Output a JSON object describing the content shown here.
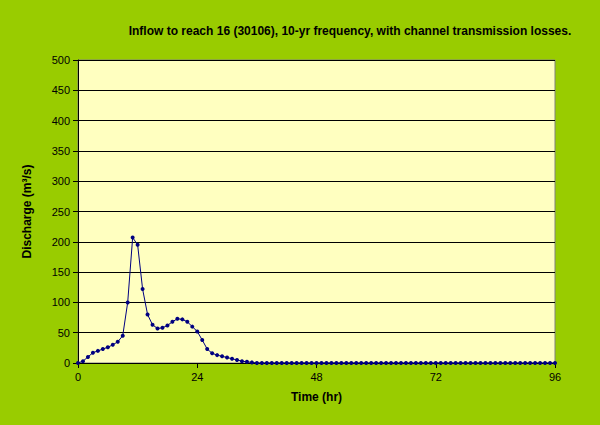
{
  "chart_data": {
    "type": "line",
    "title": "Inflow to reach 16 (30106), 10-yr frequency, with channel transmission losses.",
    "x_label": "Time (hr)",
    "y_label": "Discharge (m³/s)",
    "x": [
      0,
      1,
      2,
      3,
      4,
      5,
      6,
      7,
      8,
      9,
      10,
      11,
      12,
      13,
      14,
      15,
      16,
      17,
      18,
      19,
      20,
      21,
      22,
      23,
      24,
      25,
      26,
      27,
      28,
      29,
      30,
      31,
      32,
      33,
      34,
      35,
      36,
      37,
      38,
      39,
      40,
      41,
      42,
      43,
      44,
      45,
      46,
      47,
      48,
      49,
      50,
      51,
      52,
      53,
      54,
      55,
      56,
      57,
      58,
      59,
      60,
      61,
      62,
      63,
      64,
      65,
      66,
      67,
      68,
      69,
      70,
      71,
      72,
      73,
      74,
      75,
      76,
      77,
      78,
      79,
      80,
      81,
      82,
      83,
      84,
      85,
      86,
      87,
      88,
      89,
      90,
      91,
      92,
      93,
      94,
      95,
      96
    ],
    "values": [
      0,
      3,
      10,
      17,
      20,
      23,
      26,
      30,
      35,
      45,
      100,
      207,
      195,
      122,
      80,
      63,
      57,
      58,
      62,
      68,
      73,
      72,
      68,
      60,
      52,
      38,
      23,
      16,
      13,
      11,
      9,
      7,
      5,
      3,
      2,
      1,
      0,
      0,
      0,
      0,
      0,
      0,
      0,
      0,
      0,
      0,
      0,
      0,
      0,
      0,
      0,
      0,
      0,
      0,
      0,
      0,
      0,
      0,
      0,
      0,
      0,
      0,
      0,
      0,
      0,
      0,
      0,
      0,
      0,
      0,
      0,
      0,
      0,
      0,
      0,
      0,
      0,
      0,
      0,
      0,
      0,
      0,
      0,
      0,
      0,
      0,
      0,
      0,
      0,
      0,
      0,
      0,
      0,
      0,
      0,
      0,
      0
    ],
    "color": "#000080",
    "marker": "circle",
    "line_style": "solid",
    "xlim": [
      0,
      96
    ],
    "xticks": [
      0,
      24,
      48,
      72,
      96
    ],
    "ylim": [
      0,
      500
    ],
    "yticks": [
      0,
      50,
      100,
      150,
      200,
      250,
      300,
      350,
      400,
      450,
      500
    ],
    "grid": true
  }
}
